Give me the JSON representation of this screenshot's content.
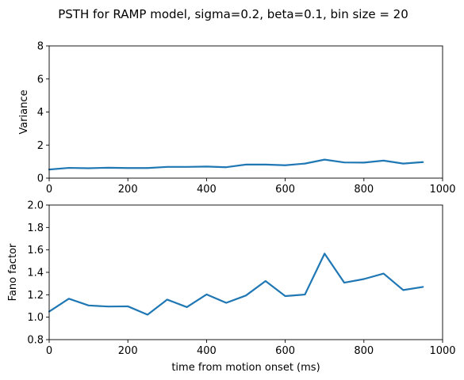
{
  "figure": {
    "title": "PSTH for RAMP model, sigma=0.2, beta=0.1, bin size = 20"
  },
  "chart_data": [
    {
      "type": "line",
      "title": "",
      "xlabel": "",
      "ylabel": "Variance",
      "xlim": [
        0,
        1000
      ],
      "ylim": [
        0,
        8
      ],
      "xticks": [
        0,
        200,
        400,
        600,
        800,
        1000
      ],
      "yticks": [
        0,
        2,
        4,
        6,
        8
      ],
      "grid": false,
      "line_color": "#1f77b4",
      "series": [
        {
          "x": [
            0,
            50,
            100,
            150,
            200,
            250,
            300,
            350,
            400,
            450,
            500,
            550,
            600,
            650,
            700,
            750,
            800,
            850,
            900,
            950
          ],
          "values": [
            0.52,
            0.62,
            0.6,
            0.63,
            0.61,
            0.61,
            0.68,
            0.68,
            0.7,
            0.66,
            0.82,
            0.82,
            0.78,
            0.88,
            1.12,
            0.95,
            0.94,
            1.06,
            0.88,
            0.97
          ]
        }
      ]
    },
    {
      "type": "line",
      "title": "",
      "xlabel": "time from motion onset (ms)",
      "ylabel": "Fano factor",
      "xlim": [
        0,
        1000
      ],
      "ylim": [
        0.8,
        2.0
      ],
      "xticks": [
        0,
        200,
        400,
        600,
        800,
        1000
      ],
      "yticks": [
        "0.8",
        "1.0",
        "1.2",
        "1.4",
        "1.6",
        "1.8",
        "2.0"
      ],
      "grid": false,
      "line_color": "#1f77b4",
      "series": [
        {
          "x": [
            0,
            50,
            100,
            150,
            200,
            250,
            300,
            350,
            400,
            450,
            500,
            550,
            600,
            650,
            700,
            750,
            800,
            850,
            900,
            950
          ],
          "values": [
            1.05,
            1.165,
            1.105,
            1.095,
            1.097,
            1.022,
            1.157,
            1.09,
            1.203,
            1.128,
            1.193,
            1.322,
            1.188,
            1.202,
            1.567,
            1.308,
            1.34,
            1.389,
            1.242,
            1.27
          ]
        }
      ]
    }
  ]
}
